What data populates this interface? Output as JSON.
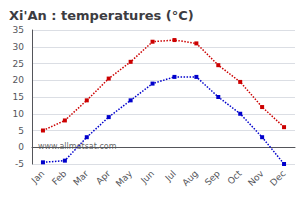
{
  "chart_data": {
    "type": "line",
    "title": "Xi'An : temperatures (°C)",
    "categories": [
      "Jan",
      "Feb",
      "Mar",
      "Apr",
      "May",
      "Jun",
      "Jul",
      "Aug",
      "Sep",
      "Oct",
      "Nov",
      "Dec"
    ],
    "series": [
      {
        "color": "#cc0000",
        "values": [
          5,
          8,
          14,
          20.5,
          25.5,
          31.5,
          32,
          31,
          24.5,
          19.5,
          12,
          6
        ],
        "marker": "square",
        "line_style": "dotted"
      },
      {
        "color": "#0000cc",
        "values": [
          -4.5,
          -4,
          3,
          9,
          14,
          19,
          21,
          21,
          15,
          10,
          3,
          -5
        ],
        "marker": "square",
        "line_style": "dotted"
      }
    ],
    "ylim": [
      -5,
      35
    ],
    "yticks": [
      -5,
      0,
      5,
      10,
      15,
      20,
      25,
      30,
      35
    ],
    "grid": true,
    "annotation": "www.allmetsat.com"
  }
}
